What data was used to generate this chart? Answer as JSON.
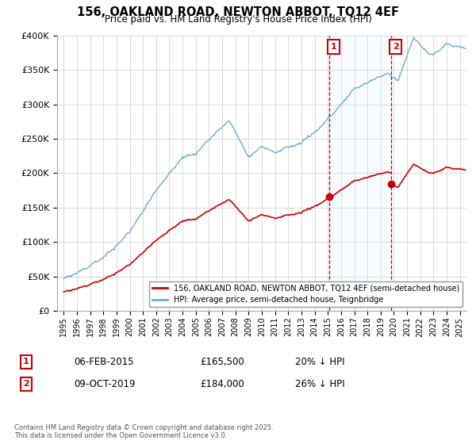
{
  "title": "156, OAKLAND ROAD, NEWTON ABBOT, TQ12 4EF",
  "subtitle": "Price paid vs. HM Land Registry's House Price Index (HPI)",
  "hpi_label": "HPI: Average price, semi-detached house, Teignbridge",
  "price_label": "156, OAKLAND ROAD, NEWTON ABBOT, TQ12 4EF (semi-detached house)",
  "footnote": "Contains HM Land Registry data © Crown copyright and database right 2025.\nThis data is licensed under the Open Government Licence v3.0.",
  "annotation1": {
    "label": "1",
    "date": "06-FEB-2015",
    "price": "£165,500",
    "desc": "20% ↓ HPI"
  },
  "annotation2": {
    "label": "2",
    "date": "09-OCT-2019",
    "price": "£184,000",
    "desc": "26% ↓ HPI"
  },
  "sale1_year": 2015.09,
  "sale1_price": 165500,
  "sale2_year": 2019.78,
  "sale2_price": 184000,
  "hpi_color": "#6baed6",
  "price_color": "#cc0000",
  "annotation_color": "#cc0000",
  "shaded_color": "#ddeeff",
  "ylim_max": 400000,
  "ylim_min": 0,
  "xmin": 1995.0,
  "xmax": 2025.5
}
